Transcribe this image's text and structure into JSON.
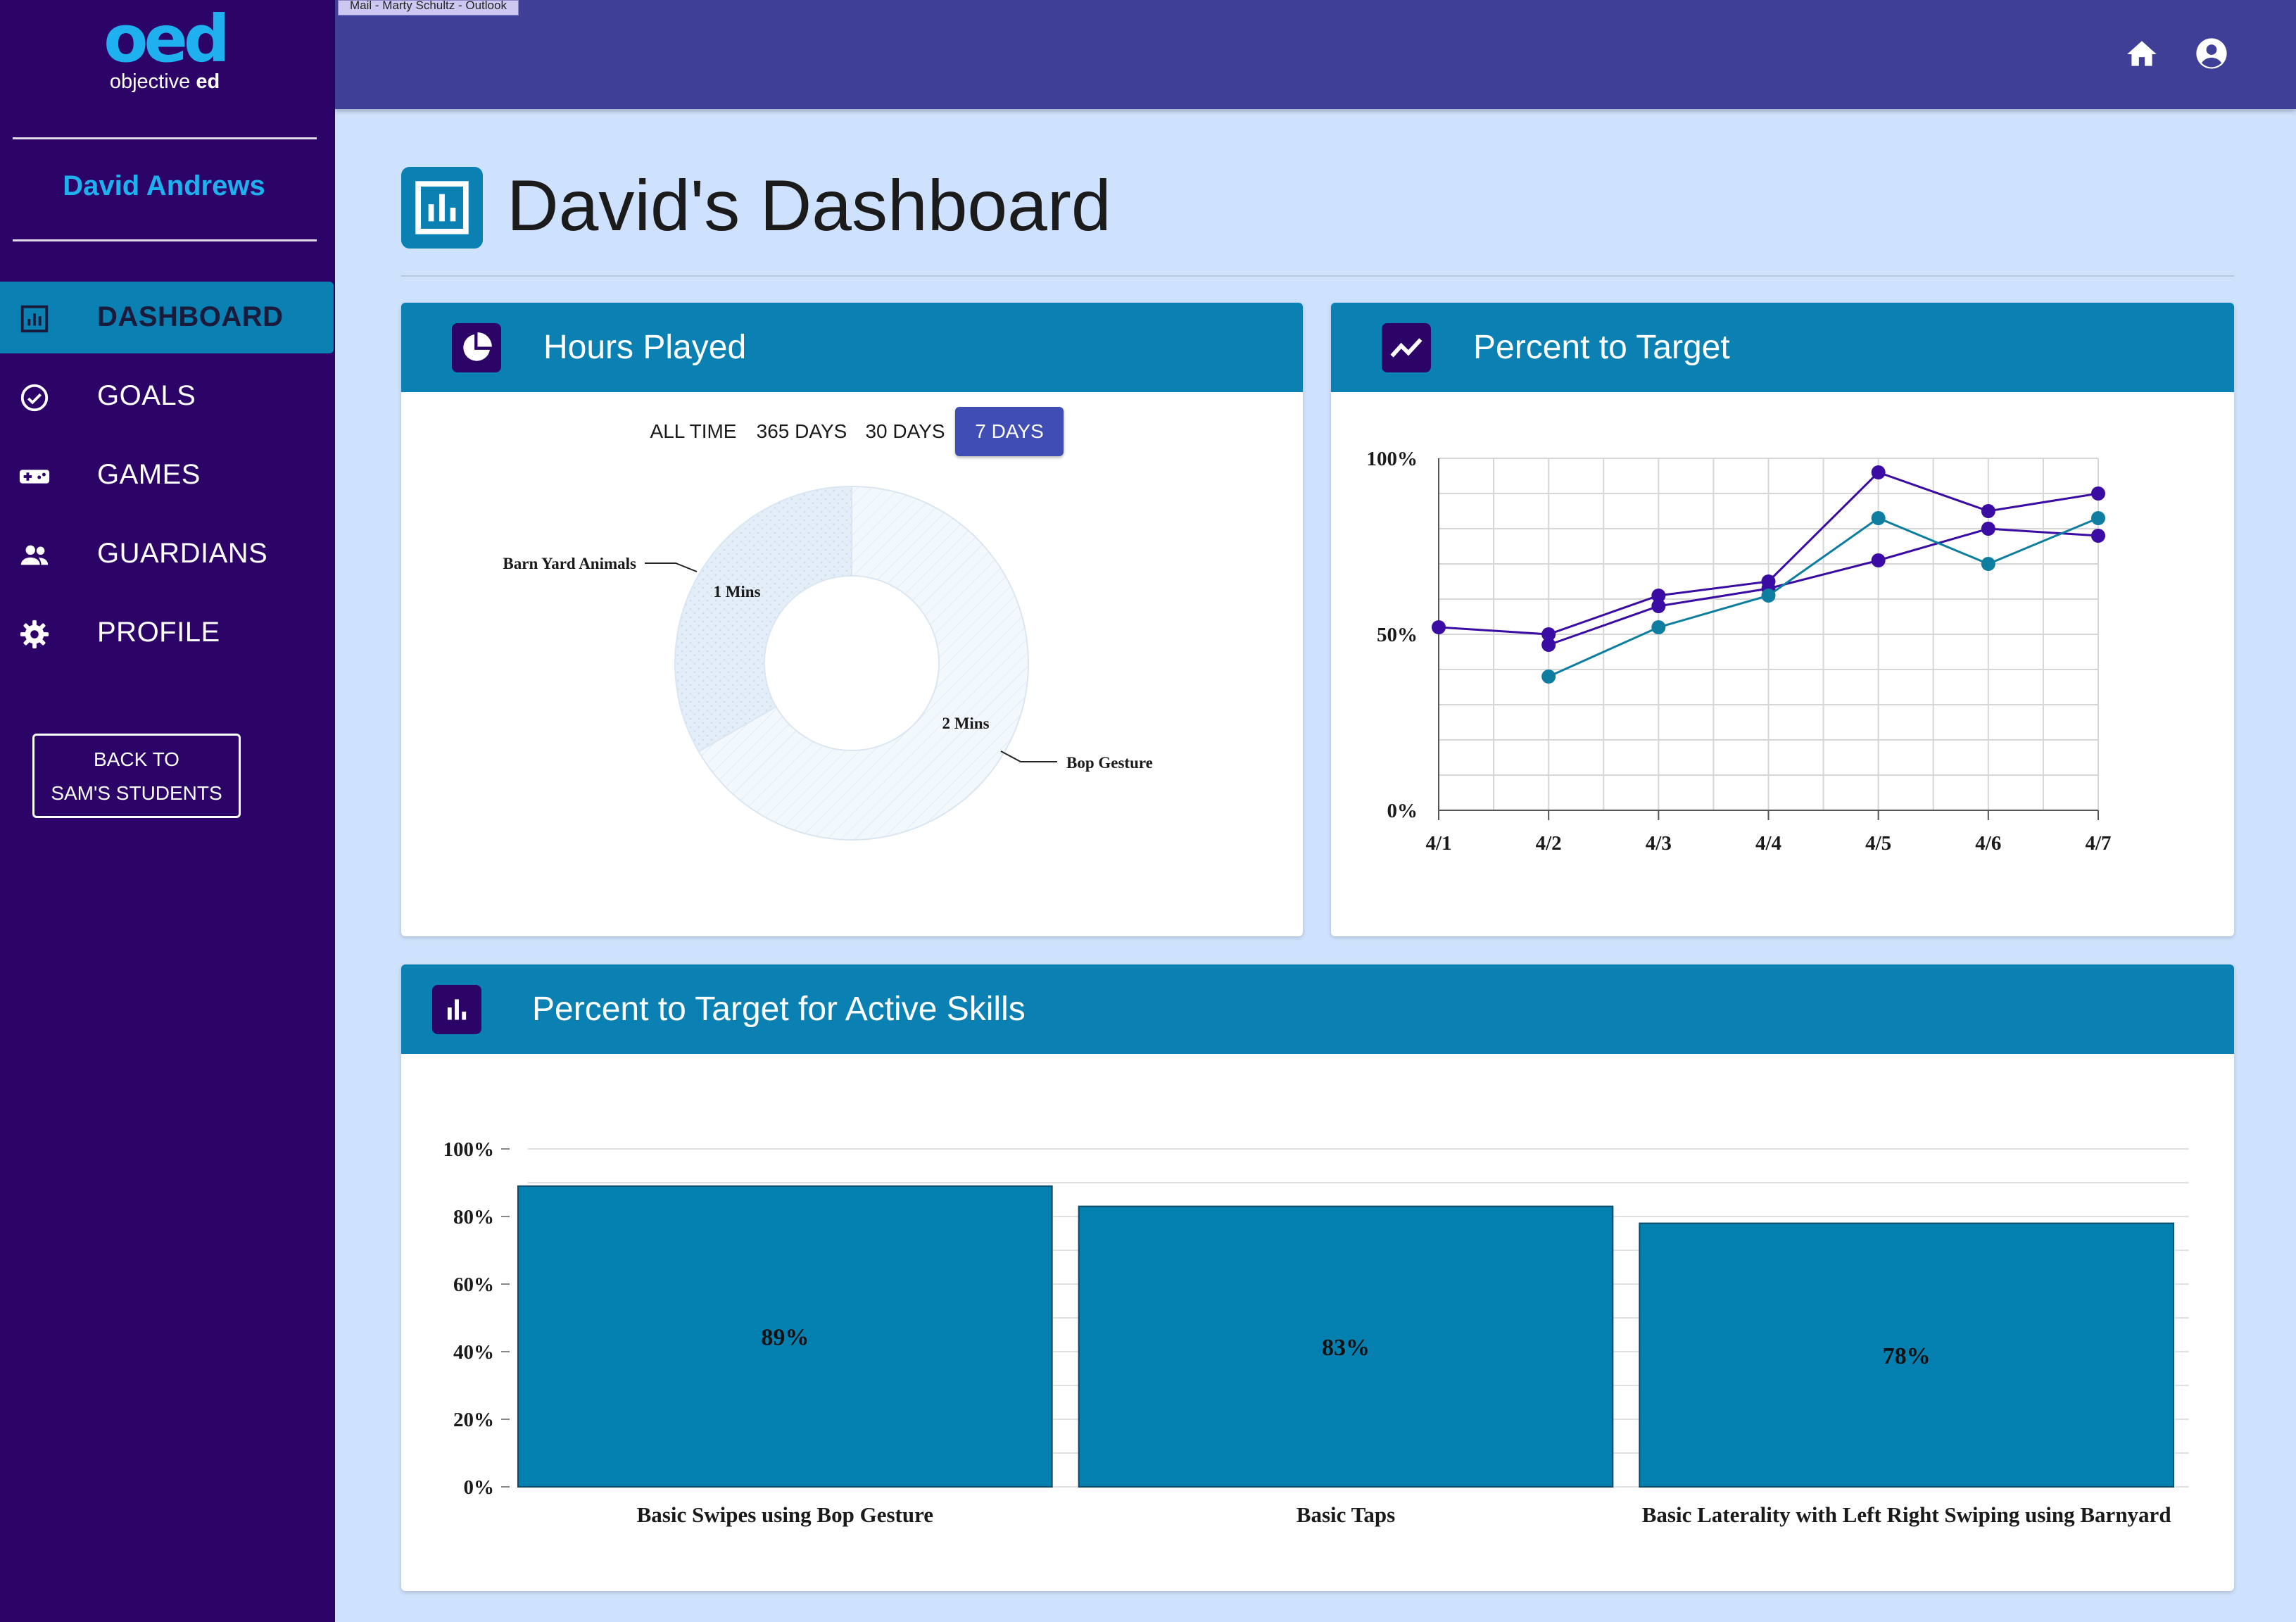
{
  "window_tooltip": "Mail - Marty Schultz - Outlook",
  "brand": {
    "mark": "oed",
    "sub_plain": "objective ",
    "sub_bold": "ed"
  },
  "sidebar": {
    "user_name": "David Andrews",
    "items": [
      {
        "label": "DASHBOARD",
        "icon": "bar-chart-icon",
        "active": true
      },
      {
        "label": "GOALS",
        "icon": "check-circle-icon",
        "active": false
      },
      {
        "label": "GAMES",
        "icon": "gamepad-icon",
        "active": false
      },
      {
        "label": "GUARDIANS",
        "icon": "people-icon",
        "active": false
      },
      {
        "label": "PROFILE",
        "icon": "gear-icon",
        "active": false
      }
    ],
    "back_button": {
      "line1": "BACK TO",
      "line2": "SAM'S STUDENTS"
    }
  },
  "topbar": {
    "icons": [
      "home-icon",
      "account-circle-icon"
    ]
  },
  "page": {
    "title": "David's Dashboard"
  },
  "hours_played": {
    "title": "Hours Played",
    "ranges": [
      "ALL TIME",
      "365 DAYS",
      "30 DAYS",
      "7 DAYS"
    ],
    "selected_range": "7 DAYS"
  },
  "percent_to_target": {
    "title": "Percent to Target"
  },
  "active_skills": {
    "title": "Percent to Target for Active Skills"
  },
  "colors": {
    "sidebar": "#2c0467",
    "accent": "#0a80b3",
    "topbar": "#3f3f98",
    "background": "#cfe2fd",
    "brand": "#1fb1ef",
    "series_purple": "#3a0ca3",
    "series_teal": "#0e7ea0"
  },
  "chart_data": [
    {
      "type": "pie",
      "subtype": "donut",
      "categories": [
        "Barn Yard Animals",
        "Bop Gesture"
      ],
      "values": [
        1,
        2
      ],
      "value_labels": [
        "1 Mins",
        "2 Mins"
      ]
    },
    {
      "type": "line",
      "categories": [
        "4/1",
        "4/2",
        "4/3",
        "4/4",
        "4/5",
        "4/6",
        "4/7"
      ],
      "y_ticks": [
        "0%",
        "50%",
        "100%"
      ],
      "ylim": [
        0,
        100
      ],
      "grid": true,
      "series": [
        {
          "values": [
            52,
            50,
            61,
            65,
            96,
            85,
            90
          ],
          "color": "#3a0ca3"
        },
        {
          "values": [
            null,
            47,
            58,
            63,
            71,
            80,
            78
          ],
          "color": "#3a0ca3"
        },
        {
          "values": [
            null,
            38,
            52,
            61,
            83,
            70,
            83
          ],
          "color": "#0e7ea0"
        }
      ]
    },
    {
      "type": "bar",
      "categories": [
        "Basic Swipes using Bop Gesture",
        "Basic Taps",
        "Basic Laterality with Left Right Swiping using Barnyard"
      ],
      "values": [
        89,
        83,
        78
      ],
      "value_labels": [
        "89%",
        "83%",
        "78%"
      ],
      "y_ticks": [
        "0%",
        "20%",
        "40%",
        "60%",
        "80%",
        "100%"
      ],
      "ylim": [
        0,
        100
      ],
      "grid": true
    }
  ]
}
